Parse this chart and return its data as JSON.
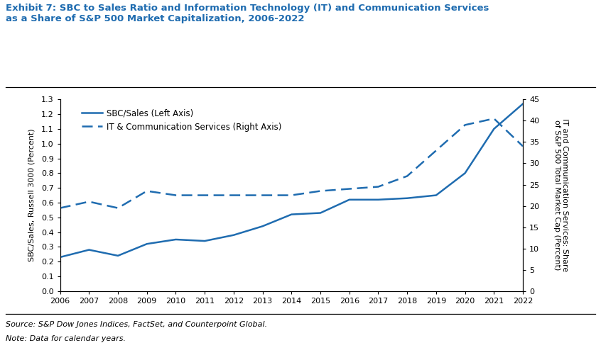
{
  "title_line1": "Exhibit 7: SBC to Sales Ratio and Information Technology (IT) and Communication Services",
  "title_line2": "as a Share of S&P 500 Market Capitalization, 2006-2022",
  "years": [
    2006,
    2007,
    2008,
    2009,
    2010,
    2011,
    2012,
    2013,
    2014,
    2015,
    2016,
    2017,
    2018,
    2019,
    2020,
    2021,
    2022
  ],
  "sbc_sales": [
    0.23,
    0.28,
    0.24,
    0.32,
    0.35,
    0.34,
    0.38,
    0.44,
    0.52,
    0.53,
    0.62,
    0.62,
    0.63,
    0.65,
    0.8,
    1.1,
    1.27
  ],
  "it_comm": [
    19.5,
    21.0,
    19.5,
    23.5,
    22.5,
    22.5,
    22.5,
    22.5,
    22.5,
    23.5,
    24.0,
    24.5,
    27.0,
    33.0,
    39.0,
    40.5,
    34.0
  ],
  "left_ylabel": "SBC/Sales, Russell 3000 (Percent)",
  "right_ylabel": "IT and Communication Services: Share\nof S&P 500 Total Market Cap (Percent)",
  "left_ylim": [
    0,
    1.3
  ],
  "right_ylim": [
    0,
    45
  ],
  "left_yticks": [
    0.0,
    0.1,
    0.2,
    0.3,
    0.4,
    0.5,
    0.6,
    0.7,
    0.8,
    0.9,
    1.0,
    1.1,
    1.2,
    1.3
  ],
  "right_yticks": [
    0,
    5,
    10,
    15,
    20,
    25,
    30,
    35,
    40,
    45
  ],
  "legend_solid": "SBC/Sales (Left Axis)",
  "legend_dashed": "IT & Communication Services (Right Axis)",
  "source_text": "Source: S&P Dow Jones Indices, FactSet, and Counterpoint Global.",
  "note_text": "Note: Data for calendar years.",
  "line_color": "#1F6CB0",
  "title_color": "#1F6CB0",
  "text_color": "#1F4E79",
  "bg_color": "#FFFFFF"
}
